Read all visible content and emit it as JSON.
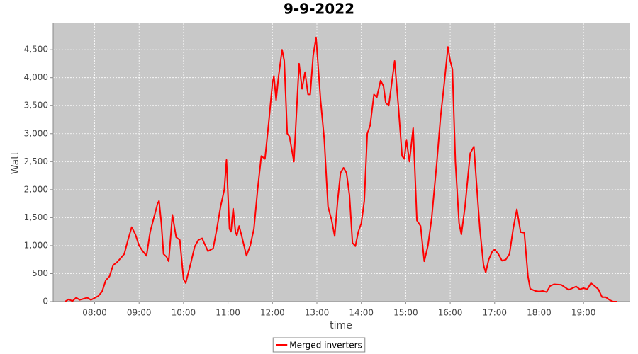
{
  "chart_data": {
    "type": "line",
    "title": "9-9-2022",
    "x_label": "time",
    "y_label": "Watt",
    "x": [
      "07:20",
      "07:25",
      "07:30",
      "07:35",
      "07:40",
      "07:50",
      "07:55",
      "08:05",
      "08:10",
      "08:15",
      "08:20",
      "08:25",
      "08:30",
      "08:40",
      "08:45",
      "08:50",
      "08:55",
      "09:00",
      "09:05",
      "09:10",
      "09:15",
      "09:20",
      "09:25",
      "09:27",
      "09:30",
      "09:33",
      "09:37",
      "09:40",
      "09:45",
      "09:50",
      "09:55",
      "10:00",
      "10:03",
      "10:10",
      "10:15",
      "10:20",
      "10:25",
      "10:33",
      "10:40",
      "10:45",
      "10:50",
      "10:55",
      "10:58",
      "11:02",
      "11:04",
      "11:07",
      "11:10",
      "11:12",
      "11:15",
      "11:18",
      "11:25",
      "11:30",
      "11:35",
      "11:40",
      "11:45",
      "11:50",
      "11:55",
      "12:00",
      "12:02",
      "12:05",
      "12:08",
      "12:13",
      "12:16",
      "12:20",
      "12:23",
      "12:29",
      "12:36",
      "12:40",
      "12:44",
      "12:48",
      "12:51",
      "12:55",
      "12:59",
      "13:05",
      "13:10",
      "13:15",
      "13:20",
      "13:24",
      "13:28",
      "13:32",
      "13:36",
      "13:40",
      "13:44",
      "13:48",
      "13:52",
      "13:56",
      "14:00",
      "14:04",
      "14:08",
      "14:12",
      "14:17",
      "14:21",
      "14:26",
      "14:30",
      "14:33",
      "14:37",
      "14:45",
      "14:50",
      "14:55",
      "14:58",
      "15:01",
      "15:05",
      "15:10",
      "15:15",
      "15:20",
      "15:25",
      "15:30",
      "15:35",
      "15:42",
      "15:47",
      "15:52",
      "15:57",
      "16:00",
      "16:03",
      "16:07",
      "16:12",
      "16:15",
      "16:20",
      "16:27",
      "16:32",
      "16:35",
      "16:40",
      "16:45",
      "16:48",
      "16:52",
      "16:57",
      "17:00",
      "17:05",
      "17:10",
      "17:15",
      "17:20",
      "17:25",
      "17:30",
      "17:35",
      "17:40",
      "17:45",
      "17:48",
      "17:55",
      "18:00",
      "18:05",
      "18:10",
      "18:15",
      "18:20",
      "18:30",
      "18:40",
      "18:50",
      "18:55",
      "19:00",
      "19:05",
      "19:10",
      "19:15",
      "19:20",
      "19:25",
      "19:30",
      "19:35",
      "19:40",
      "19:45"
    ],
    "series": [
      {
        "name": "Merged inverters",
        "color": "#ff0000",
        "values": [
          0,
          40,
          10,
          70,
          30,
          70,
          30,
          100,
          180,
          380,
          450,
          650,
          700,
          850,
          1100,
          1330,
          1200,
          1000,
          900,
          820,
          1250,
          1500,
          1750,
          1800,
          1400,
          850,
          800,
          720,
          1550,
          1150,
          1100,
          400,
          330,
          700,
          980,
          1100,
          1130,
          900,
          950,
          1300,
          1700,
          2000,
          2530,
          1300,
          1250,
          1660,
          1250,
          1180,
          1350,
          1200,
          820,
          1000,
          1300,
          2000,
          2600,
          2550,
          3200,
          3900,
          4030,
          3600,
          4000,
          4500,
          4300,
          3000,
          2950,
          2500,
          4250,
          3800,
          4100,
          3700,
          3700,
          4400,
          4720,
          3600,
          2900,
          1700,
          1450,
          1170,
          1800,
          2300,
          2390,
          2300,
          1900,
          1050,
          990,
          1250,
          1400,
          1800,
          3000,
          3150,
          3700,
          3650,
          3950,
          3850,
          3550,
          3500,
          4300,
          3500,
          2600,
          2550,
          2880,
          2500,
          3100,
          1450,
          1350,
          720,
          1000,
          1500,
          2500,
          3300,
          3900,
          4550,
          4300,
          4150,
          2500,
          1400,
          1200,
          1700,
          2650,
          2770,
          2200,
          1300,
          650,
          520,
          750,
          900,
          930,
          850,
          730,
          750,
          850,
          1300,
          1650,
          1240,
          1230,
          450,
          230,
          190,
          180,
          190,
          170,
          280,
          310,
          300,
          210,
          270,
          220,
          240,
          220,
          330,
          280,
          220,
          80,
          80,
          30,
          0,
          0
        ]
      }
    ],
    "xlim": [
      "07:04",
      "20:03"
    ],
    "xticks": [
      "08:00",
      "09:00",
      "10:00",
      "11:00",
      "12:00",
      "13:00",
      "14:00",
      "15:00",
      "16:00",
      "17:00",
      "18:00",
      "19:00"
    ],
    "ylim": [
      0,
      4970
    ],
    "yticks": [
      0,
      500,
      {
        "value": 1000,
        "label": "1,000"
      },
      {
        "value": 1500,
        "label": "1,500"
      },
      {
        "value": 2000,
        "label": "2,000"
      },
      {
        "value": 2500,
        "label": "2,500"
      },
      {
        "value": 3000,
        "label": "3,000"
      },
      {
        "value": 3500,
        "label": "3,500"
      },
      {
        "value": 4000,
        "label": "4,000"
      },
      {
        "value": 4500,
        "label": "4,500"
      }
    ],
    "grid": true,
    "background": "#c8c8c8",
    "legend": "bottom"
  }
}
